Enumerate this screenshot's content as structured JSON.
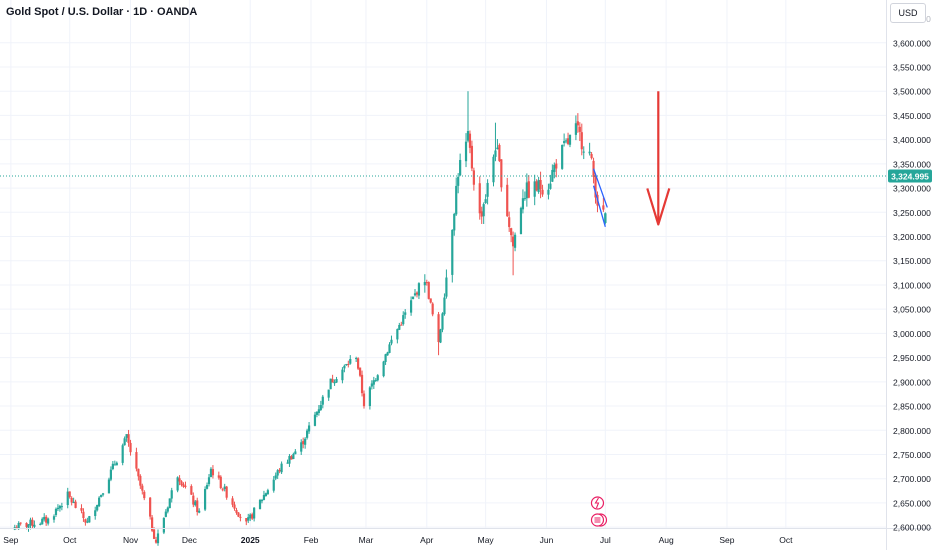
{
  "header": {
    "title": "Gold Spot / U.S. Dollar · 1D · OANDA",
    "currency": "USD"
  },
  "colors": {
    "up": "#26a69a",
    "down": "#ef5350",
    "price_line": "#26a69a",
    "arrow": "#e53935",
    "projection": "#2962ff",
    "event_icon": "#e91e63"
  },
  "price_tag": "3,324.995",
  "event_icons": [
    "lightning-event-icon",
    "us-flag-event-icon",
    "us-flag-event-icon"
  ],
  "chart_data": {
    "type": "candlestick",
    "y_axis": {
      "range": [
        2590,
        3680
      ],
      "ticks": [
        "3,600.000",
        "3,550.000",
        "3,500.000",
        "3,450.000",
        "3,400.000",
        "3,350.000",
        "3,300.000",
        "3,250.000",
        "3,200.000",
        "3,150.000",
        "3,100.000",
        "3,050.000",
        "3,000.000",
        "2,950.000",
        "2,900.000",
        "2,850.000",
        "2,800.000",
        "2,750.000",
        "2,700.000",
        "2,650.000",
        "2,600.000"
      ],
      "tick_values": [
        3600,
        3550,
        3500,
        3450,
        3400,
        3350,
        3300,
        3250,
        3200,
        3150,
        3100,
        3050,
        3000,
        2950,
        2900,
        2850,
        2800,
        2750,
        2700,
        2650,
        2600
      ]
    },
    "x_axis": {
      "labels": [
        "Sep",
        "Oct",
        "Nov",
        "Dec",
        "2025",
        "Feb",
        "Mar",
        "Apr",
        "May",
        "Jun",
        "Jul",
        "Aug",
        "Sep",
        "Oct"
      ],
      "label_dates": [
        "2024-09-01",
        "2024-10-01",
        "2024-11-01",
        "2024-12-01",
        "2025-01-01",
        "2025-02-01",
        "2025-03-01",
        "2025-04-01",
        "2025-05-01",
        "2025-06-01",
        "2025-07-01",
        "2025-08-01",
        "2025-09-01",
        "2025-10-01"
      ],
      "bold_labels": [
        "2025"
      ],
      "range": [
        "2024-08-28",
        "2025-11-18"
      ]
    },
    "last_price": 3324.995,
    "series_anchors": [
      [
        "2024-09-03",
        2600
      ],
      [
        "2024-09-20",
        2615
      ],
      [
        "2024-09-30",
        2665
      ],
      [
        "2024-10-10",
        2608
      ],
      [
        "2024-10-30",
        2785
      ],
      [
        "2024-11-14",
        2570
      ],
      [
        "2024-11-25",
        2710
      ],
      [
        "2024-12-06",
        2630
      ],
      [
        "2024-12-12",
        2720
      ],
      [
        "2024-12-30",
        2605
      ],
      [
        "2025-01-16",
        2720
      ],
      [
        "2025-01-27",
        2770
      ],
      [
        "2025-02-11",
        2900
      ],
      [
        "2025-02-24",
        2955
      ],
      [
        "2025-02-28",
        2855
      ],
      [
        "2025-03-14",
        2985
      ],
      [
        "2025-03-31",
        3120
      ],
      [
        "2025-04-07",
        2975
      ],
      [
        "2025-04-17",
        3335
      ],
      [
        "2025-04-22",
        3400
      ],
      [
        "2025-04-28",
        3240
      ],
      [
        "2025-05-02",
        3300
      ],
      [
        "2025-05-06",
        3390
      ],
      [
        "2025-05-15",
        3180
      ],
      [
        "2025-05-20",
        3290
      ],
      [
        "2025-06-02",
        3310
      ],
      [
        "2025-06-06",
        3355
      ],
      [
        "2025-06-16",
        3420
      ],
      [
        "2025-06-23",
        3370
      ],
      [
        "2025-06-27",
        3275
      ],
      [
        "2025-06-30",
        3240
      ]
    ],
    "spikes": [
      {
        "date": "2025-04-22",
        "high": 3500
      },
      {
        "date": "2025-05-06",
        "high": 3435
      },
      {
        "date": "2025-05-15",
        "low": 3120
      },
      {
        "date": "2025-04-07",
        "low": 2955
      },
      {
        "date": "2024-10-30",
        "high": 2790
      },
      {
        "date": "2025-06-16",
        "high": 3450
      }
    ],
    "annotations": {
      "down_arrow": {
        "date": "2025-07-28",
        "from": 3500,
        "to": 3225
      },
      "projection_lines": [
        {
          "from": [
            "2025-06-25",
            3340
          ],
          "to": [
            "2025-07-02",
            3260
          ]
        },
        {
          "from": [
            "2025-06-25",
            3305
          ],
          "to": [
            "2025-07-01",
            3220
          ]
        }
      ]
    }
  }
}
